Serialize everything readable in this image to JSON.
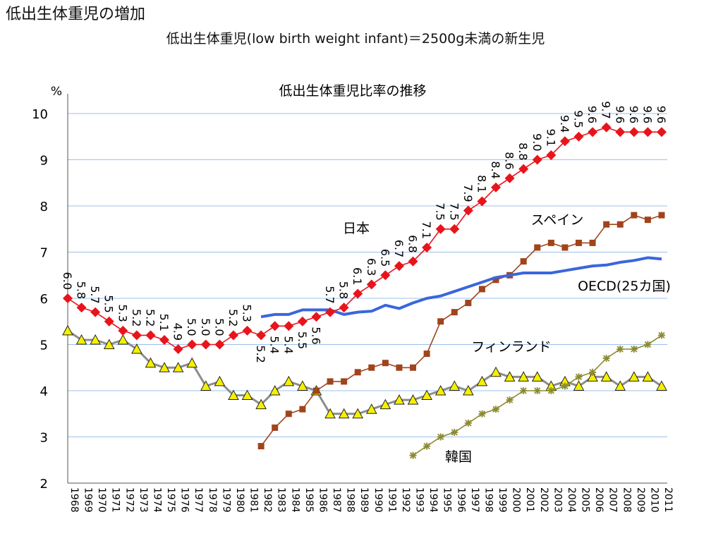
{
  "page_title": "低出生体重児の増加",
  "definition": "低出生体重児(low birth weight infant)＝2500g未満の新生児",
  "chart_data": {
    "type": "line",
    "title": "低出生体重児比率の推移",
    "ylabel": "%",
    "xlabel": "",
    "ylim": [
      2,
      10
    ],
    "yticks": [
      2,
      3,
      4,
      5,
      6,
      7,
      8,
      9,
      10
    ],
    "grid": true,
    "legend": "inline-labels",
    "x": [
      1968,
      1969,
      1970,
      1971,
      1972,
      1973,
      1974,
      1975,
      1976,
      1977,
      1978,
      1979,
      1980,
      1981,
      1982,
      1983,
      1984,
      1985,
      1986,
      1987,
      1988,
      1989,
      1990,
      1991,
      1992,
      1993,
      1994,
      1995,
      1996,
      1997,
      1998,
      1999,
      2000,
      2001,
      2002,
      2003,
      2004,
      2005,
      2006,
      2007,
      2008,
      2009,
      2010,
      2011
    ],
    "x_labels": [
      "1968",
      "1969",
      "1970",
      "1971",
      "1972",
      "1973",
      "1974",
      "1975",
      "1976",
      "1977",
      "1978",
      "1979",
      "1980",
      "1981",
      "1982",
      "1983",
      "1984",
      "1985",
      "1986",
      "1987",
      "1988",
      "1989",
      "1990",
      "1991",
      "1992",
      "1993",
      "1994",
      "1995",
      "1996",
      "1997",
      "1998",
      "1999",
      "2000",
      "2001",
      "2002",
      "2003",
      "2004",
      "2005",
      "2006",
      "2007",
      "2008",
      "2009",
      "2010",
      "2011"
    ],
    "series": [
      {
        "name": "日本",
        "color": "#e8141c",
        "marker": "diamond",
        "x": [
          1968,
          1969,
          1970,
          1971,
          1972,
          1973,
          1974,
          1975,
          1976,
          1977,
          1978,
          1979,
          1980,
          1981,
          1982,
          1983,
          1984,
          1985,
          1986,
          1987,
          1988,
          1989,
          1990,
          1991,
          1992,
          1993,
          1994,
          1995,
          1996,
          1997,
          1998,
          1999,
          2000,
          2001,
          2002,
          2003,
          2004,
          2005,
          2006,
          2007,
          2008,
          2009,
          2010,
          2011
        ],
        "values": [
          6.0,
          5.8,
          5.7,
          5.5,
          5.3,
          5.2,
          5.2,
          5.1,
          4.9,
          5.0,
          5.0,
          5.0,
          5.2,
          5.3,
          5.2,
          5.4,
          5.4,
          5.5,
          5.6,
          5.7,
          5.8,
          6.1,
          6.3,
          6.5,
          6.7,
          6.8,
          7.1,
          7.5,
          7.5,
          7.9,
          8.1,
          8.4,
          8.6,
          8.8,
          9.0,
          9.1,
          9.4,
          9.5,
          9.6,
          9.7,
          9.6,
          9.6,
          9.6,
          9.6
        ],
        "data_labels": [
          "6.0",
          "5.8",
          "5.7",
          "5.5",
          "5.3",
          "5.2",
          "5.2",
          "5.1",
          "4.9",
          "5.0",
          "5.0",
          "5.0",
          "5.2",
          "5.3",
          "5.2",
          "5.4",
          "5.4",
          "5.5",
          "5.6",
          "5.7",
          "5.8",
          "6.1",
          "6.3",
          "6.5",
          "6.7",
          "6.8",
          "7.1",
          "7.5",
          "7.5",
          "7.9",
          "8.1",
          "8.4",
          "8.6",
          "8.8",
          "9.0",
          "9.1",
          "9.4",
          "9.5",
          "9.6",
          "9.7",
          "9.6",
          "9.6",
          "9.6",
          "9.6"
        ]
      },
      {
        "name": "スペイン",
        "color": "#a0441c",
        "marker": "square",
        "x": [
          1982,
          1983,
          1984,
          1985,
          1986,
          1987,
          1988,
          1989,
          1990,
          1991,
          1992,
          1993,
          1994,
          1995,
          1996,
          1997,
          1998,
          1999,
          2000,
          2001,
          2002,
          2003,
          2004,
          2005,
          2006,
          2007,
          2008,
          2009,
          2010,
          2011
        ],
        "values": [
          2.8,
          3.2,
          3.5,
          3.6,
          4.0,
          4.2,
          4.2,
          4.4,
          4.5,
          4.6,
          4.5,
          4.5,
          4.8,
          5.5,
          5.7,
          5.9,
          6.2,
          6.4,
          6.5,
          6.8,
          7.1,
          7.2,
          7.1,
          7.2,
          7.2,
          7.6,
          7.6,
          7.8,
          7.7,
          7.8
        ]
      },
      {
        "name": "OECD(25カ国)",
        "color": "#3a66dc",
        "marker": "none",
        "x": [
          1982,
          1983,
          1984,
          1985,
          1986,
          1987,
          1988,
          1989,
          1990,
          1991,
          1992,
          1993,
          1994,
          1995,
          1996,
          1997,
          1998,
          1999,
          2000,
          2001,
          2002,
          2003,
          2004,
          2005,
          2006,
          2007,
          2008,
          2009,
          2010,
          2011
        ],
        "values": [
          5.6,
          5.65,
          5.65,
          5.75,
          5.75,
          5.75,
          5.65,
          5.7,
          5.72,
          5.85,
          5.78,
          5.9,
          6.0,
          6.05,
          6.15,
          6.25,
          6.35,
          6.45,
          6.5,
          6.55,
          6.55,
          6.55,
          6.6,
          6.65,
          6.7,
          6.72,
          6.78,
          6.82,
          6.88,
          6.85
        ]
      },
      {
        "name": "フィンランド",
        "color": "#8c8c8c",
        "marker": "triangle",
        "x": [
          1968,
          1969,
          1970,
          1971,
          1972,
          1973,
          1974,
          1975,
          1976,
          1977,
          1978,
          1979,
          1980,
          1981,
          1982,
          1983,
          1984,
          1985,
          1986,
          1987,
          1988,
          1989,
          1990,
          1991,
          1992,
          1993,
          1994,
          1995,
          1996,
          1997,
          1998,
          1999,
          2000,
          2001,
          2002,
          2003,
          2004,
          2005,
          2006,
          2007,
          2008,
          2009,
          2010,
          2011
        ],
        "values": [
          5.3,
          5.1,
          5.1,
          5.0,
          5.1,
          4.9,
          4.6,
          4.5,
          4.5,
          4.6,
          4.1,
          4.2,
          3.9,
          3.9,
          3.7,
          4.0,
          4.2,
          4.1,
          4.0,
          3.5,
          3.5,
          3.5,
          3.6,
          3.7,
          3.8,
          3.8,
          3.9,
          4.0,
          4.1,
          4.0,
          4.2,
          4.4,
          4.3,
          4.3,
          4.3,
          4.1,
          4.2,
          4.1,
          4.3,
          4.3,
          4.1,
          4.3,
          4.3,
          4.1
        ]
      },
      {
        "name": "韓国",
        "color": "#8c8a30",
        "marker": "star",
        "x": [
          1993,
          1994,
          1995,
          1996,
          1997,
          1998,
          1999,
          2000,
          2001,
          2002,
          2003,
          2004,
          2005,
          2006,
          2007,
          2008,
          2009,
          2010,
          2011
        ],
        "values": [
          2.6,
          2.8,
          3.0,
          3.1,
          3.3,
          3.5,
          3.6,
          3.8,
          4.0,
          4.0,
          4.0,
          4.1,
          4.3,
          4.4,
          4.7,
          4.9,
          4.9,
          5.0,
          5.2
        ]
      }
    ]
  }
}
